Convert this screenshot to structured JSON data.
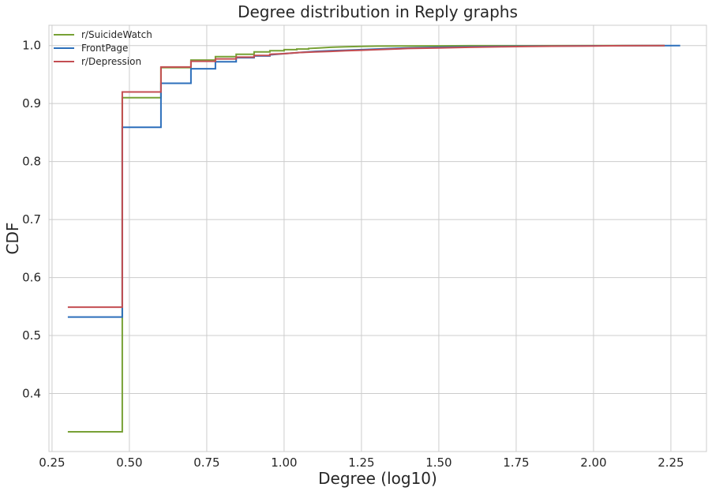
{
  "chart_data": {
    "type": "line",
    "title": "Degree distribution in Reply graphs",
    "xlabel": "Degree (log10)",
    "ylabel": "CDF",
    "xlim": [
      0.24,
      2.365
    ],
    "ylim": [
      0.3,
      1.035
    ],
    "xticks": [
      0.25,
      0.5,
      0.75,
      1.0,
      1.25,
      1.5,
      1.75,
      2.0,
      2.25
    ],
    "xtick_labels": [
      "0.25",
      "0.50",
      "0.75",
      "1.00",
      "1.25",
      "1.50",
      "1.75",
      "2.00",
      "2.25"
    ],
    "yticks": [
      0.4,
      0.5,
      0.6,
      0.7,
      0.8,
      0.9,
      1.0
    ],
    "ytick_labels": [
      "0.4",
      "0.5",
      "0.6",
      "0.7",
      "0.8",
      "0.9",
      "1.0"
    ],
    "grid": true,
    "legend_position": "top-left",
    "series": [
      {
        "name": "r/SuicideWatch",
        "color": "#77a135",
        "x": [
          0.301,
          0.477,
          0.477,
          0.602,
          0.602,
          0.699,
          0.699,
          0.778,
          0.778,
          0.845,
          0.845,
          0.903,
          0.903,
          0.954,
          0.954,
          1.0,
          1.0,
          1.041,
          1.041,
          1.079,
          1.079,
          1.114,
          1.15,
          1.2,
          1.25,
          1.3,
          1.4,
          1.5,
          1.6,
          1.8,
          2.0,
          2.23
        ],
        "y": [
          0.334,
          0.334,
          0.91,
          0.91,
          0.962,
          0.962,
          0.975,
          0.975,
          0.981,
          0.981,
          0.985,
          0.985,
          0.989,
          0.989,
          0.991,
          0.991,
          0.993,
          0.993,
          0.994,
          0.994,
          0.995,
          0.996,
          0.997,
          0.998,
          0.9985,
          0.999,
          0.9993,
          0.9995,
          0.9997,
          0.9998,
          0.9999,
          1.0
        ]
      },
      {
        "name": "FrontPage",
        "color": "#2c6fbb",
        "x": [
          0.301,
          0.477,
          0.477,
          0.602,
          0.602,
          0.699,
          0.699,
          0.778,
          0.778,
          0.845,
          0.845,
          0.903,
          0.903,
          0.954,
          0.954,
          1.0,
          1.05,
          1.1,
          1.15,
          1.2,
          1.25,
          1.3,
          1.4,
          1.5,
          1.6,
          1.7,
          1.8,
          1.9,
          2.0,
          2.1,
          2.28
        ],
        "y": [
          0.532,
          0.532,
          0.859,
          0.859,
          0.935,
          0.935,
          0.96,
          0.96,
          0.972,
          0.972,
          0.979,
          0.979,
          0.982,
          0.982,
          0.984,
          0.986,
          0.988,
          0.99,
          0.991,
          0.992,
          0.993,
          0.994,
          0.996,
          0.997,
          0.998,
          0.9985,
          0.999,
          0.9993,
          0.9996,
          0.9998,
          1.0
        ]
      },
      {
        "name": "r/Depression",
        "color": "#c44e52",
        "x": [
          0.301,
          0.477,
          0.477,
          0.602,
          0.602,
          0.699,
          0.699,
          0.778,
          0.778,
          0.845,
          0.845,
          0.903,
          0.903,
          0.954,
          0.954,
          1.0,
          1.05,
          1.1,
          1.15,
          1.2,
          1.25,
          1.3,
          1.4,
          1.5,
          1.6,
          1.7,
          1.8,
          1.9,
          2.0,
          2.1,
          2.23
        ],
        "y": [
          0.549,
          0.549,
          0.92,
          0.92,
          0.963,
          0.963,
          0.973,
          0.973,
          0.977,
          0.977,
          0.98,
          0.98,
          0.983,
          0.983,
          0.985,
          0.986,
          0.988,
          0.989,
          0.99,
          0.991,
          0.992,
          0.993,
          0.995,
          0.996,
          0.997,
          0.998,
          0.9985,
          0.999,
          0.9994,
          0.9997,
          1.0
        ]
      }
    ]
  }
}
